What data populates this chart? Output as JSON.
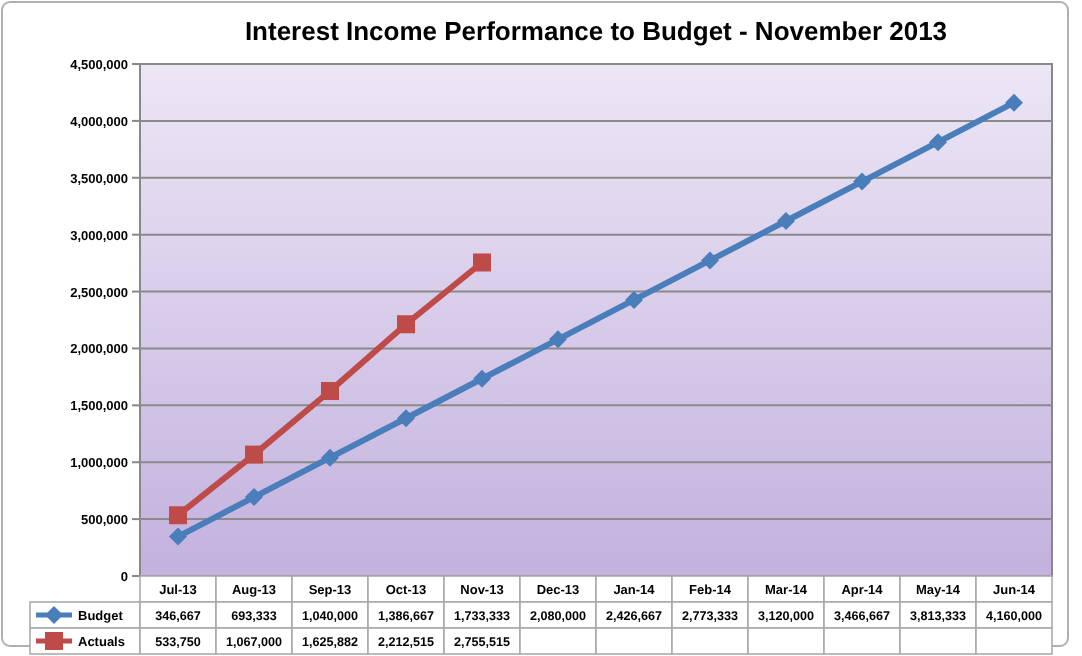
{
  "chart_data": {
    "type": "line",
    "title": "Interest Income Performance to Budget - November 2013",
    "categories": [
      "Jul-13",
      "Aug-13",
      "Sep-13",
      "Oct-13",
      "Nov-13",
      "Dec-13",
      "Jan-14",
      "Feb-14",
      "Mar-14",
      "Apr-14",
      "May-14",
      "Jun-14"
    ],
    "series": [
      {
        "name": "Budget",
        "color": "#4a7ebb",
        "marker": "diamond",
        "values": [
          346667,
          693333,
          1040000,
          1386667,
          1733333,
          2080000,
          2426667,
          2773333,
          3120000,
          3466667,
          3813333,
          4160000
        ],
        "value_labels": [
          "346,667",
          "693,333",
          "1,040,000",
          "1,386,667",
          "1,733,333",
          "2,080,000",
          "2,426,667",
          "2,773,333",
          "3,120,000",
          "3,466,667",
          "3,813,333",
          "4,160,000"
        ]
      },
      {
        "name": "Actuals",
        "color": "#be4b48",
        "marker": "square",
        "values": [
          533750,
          1067000,
          1625882,
          2212515,
          2755515,
          null,
          null,
          null,
          null,
          null,
          null,
          null
        ],
        "value_labels": [
          "533,750",
          "1,067,000",
          "1,625,882",
          "2,212,515",
          "2,755,515",
          null,
          null,
          null,
          null,
          null,
          null,
          null
        ]
      }
    ],
    "ylim": [
      0,
      4500000
    ],
    "yticks": [
      {
        "value": 0,
        "label": "0"
      },
      {
        "value": 500000,
        "label": "500,000"
      },
      {
        "value": 1000000,
        "label": "1,000,000"
      },
      {
        "value": 1500000,
        "label": "1,500,000"
      },
      {
        "value": 2000000,
        "label": "2,000,000"
      },
      {
        "value": 2500000,
        "label": "2,500,000"
      },
      {
        "value": 3000000,
        "label": "3,000,000"
      },
      {
        "value": 3500000,
        "label": "3,500,000"
      },
      {
        "value": 4000000,
        "label": "4,000,000"
      },
      {
        "value": 4500000,
        "label": "4,500,000"
      }
    ],
    "grid": "y",
    "legend": "bottom",
    "line_style": "solid"
  }
}
